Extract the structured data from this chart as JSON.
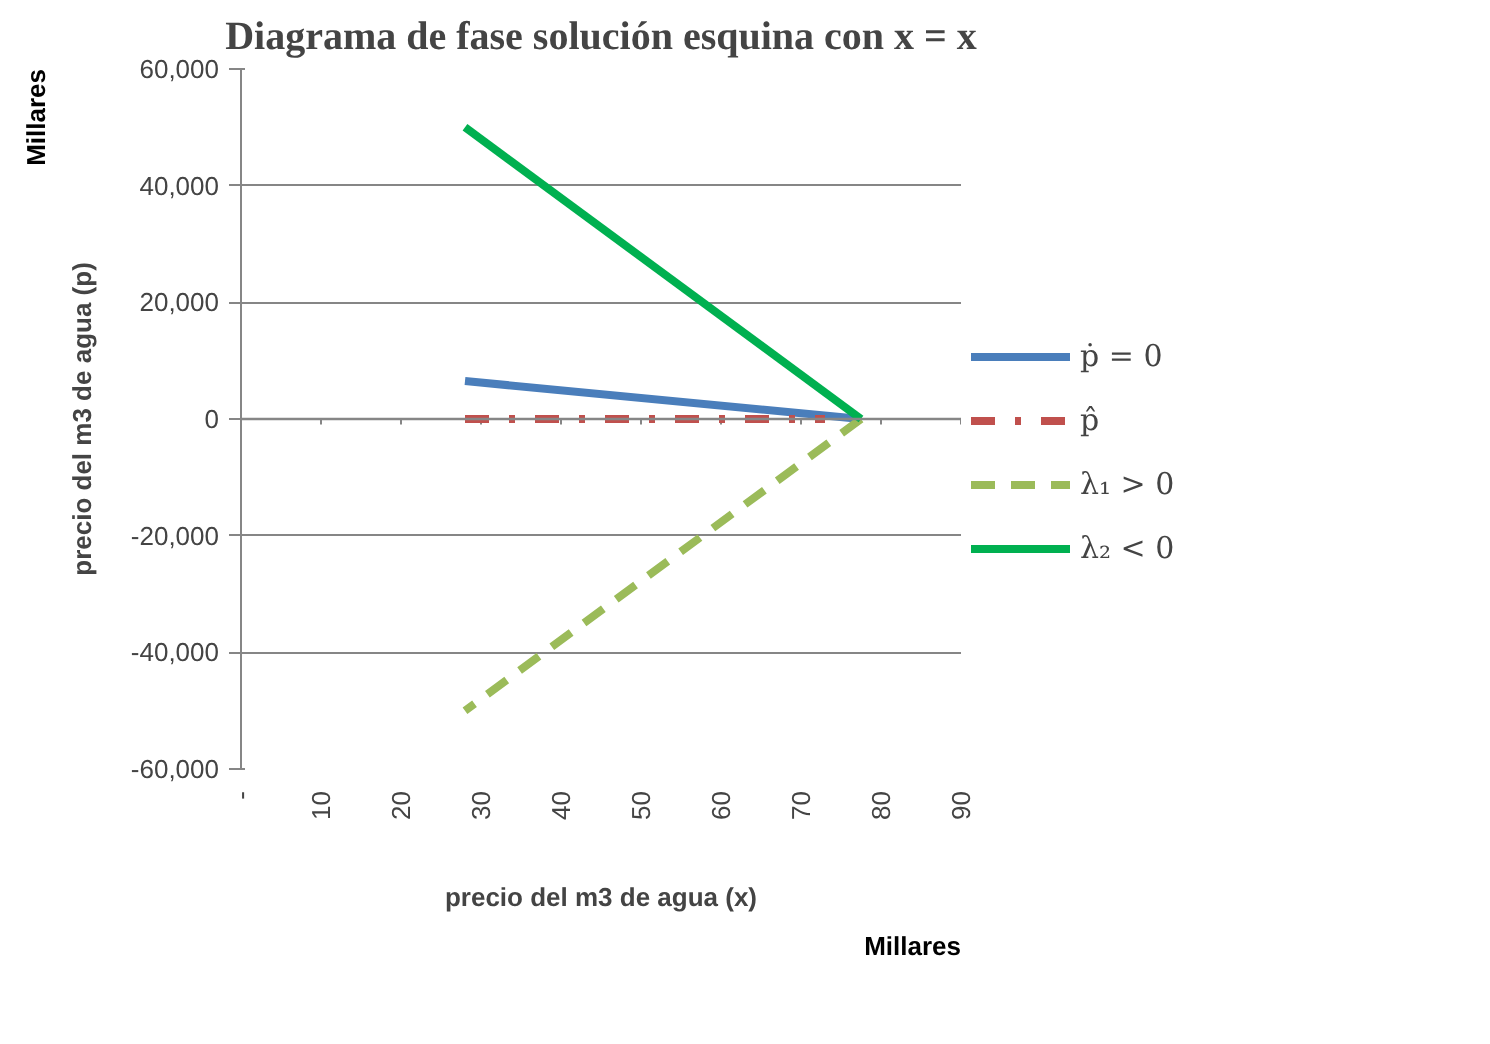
{
  "chart_data": {
    "type": "line",
    "title": "Diagrama de fase solución esquina con x = x",
    "xlabel": "precio del m3 de agua (x)",
    "ylabel": "precio del m3 de agua (p)",
    "annotations": [
      "Millares",
      "Millares"
    ],
    "xlim": [
      0,
      90
    ],
    "xticks": [
      {
        "value": 0,
        "label": "-"
      },
      10,
      20,
      30,
      40,
      50,
      60,
      70,
      80,
      90
    ],
    "ylim": [
      -60000,
      60000
    ],
    "yticks": [
      {
        "value": -60000,
        "label": "-60,000"
      },
      {
        "value": -40000,
        "label": "-40,000"
      },
      {
        "value": -20000,
        "label": "-20,000"
      },
      0,
      {
        "value": 20000,
        "label": "20,000"
      },
      {
        "value": 40000,
        "label": "40,000"
      },
      {
        "value": 60000,
        "label": "60,000"
      }
    ],
    "grid": "y",
    "legend": "right",
    "series": [
      {
        "name": "ṗ = 0",
        "color": "#4a7ebb",
        "x": [
          28,
          77.5
        ],
        "values": [
          6500,
          0
        ],
        "line_style": "solid"
      },
      {
        "name": "p̂",
        "color": "#c0504d",
        "x": [
          28,
          73
        ],
        "values": [
          0,
          0
        ],
        "line_style": "dashdot"
      },
      {
        "name": "λ₁ > 0",
        "color": "#9bbb59",
        "x": [
          77.5,
          28
        ],
        "values": [
          0,
          -50000
        ],
        "line_style": "dashed"
      },
      {
        "name": "λ₂ < 0",
        "color": "#00b050",
        "x": [
          28,
          77.5
        ],
        "values": [
          50000,
          0
        ],
        "line_style": "solid"
      }
    ]
  }
}
